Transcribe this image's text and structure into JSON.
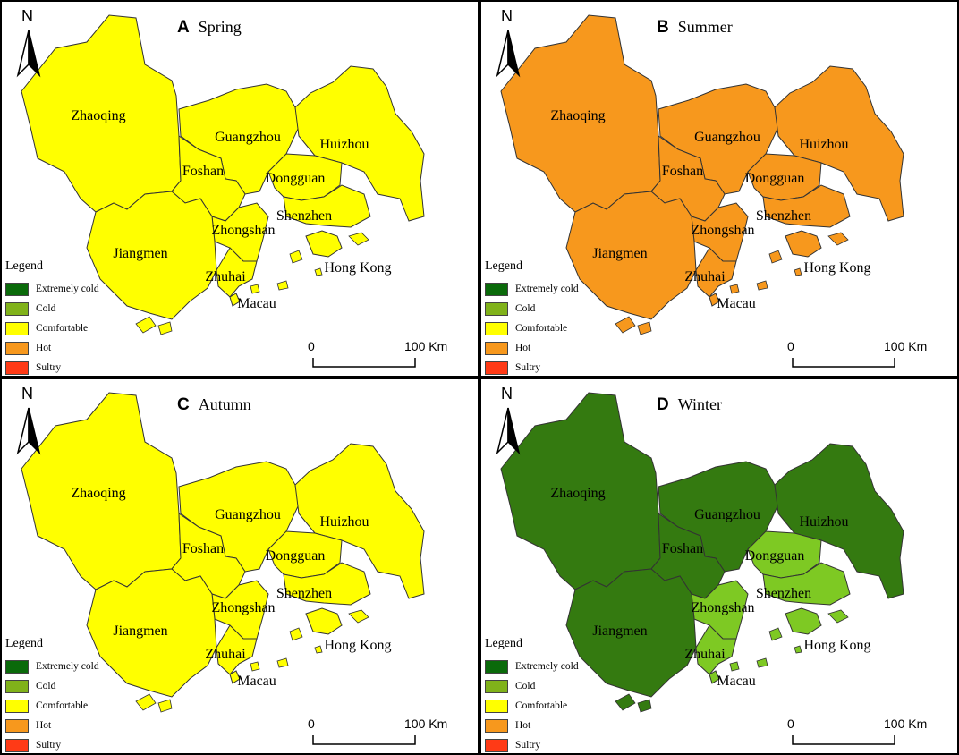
{
  "colors": {
    "extremely_cold": "#0a6a0a",
    "cold": "#80b21a",
    "comfortable": "#ffff00",
    "hot": "#f7981d",
    "sultry": "#ff3a16",
    "winter_dark": "#347a10",
    "winter_light": "#7ec923"
  },
  "legend": {
    "title": "Legend",
    "items": [
      {
        "label": "Extremely cold",
        "color": "#0a6a0a"
      },
      {
        "label": "Cold",
        "color": "#80b21a"
      },
      {
        "label": "Comfortable",
        "color": "#ffff00"
      },
      {
        "label": "Hot",
        "color": "#f7981d"
      },
      {
        "label": "Sultry",
        "color": "#ff3a16"
      }
    ]
  },
  "north_label": "N",
  "scale": {
    "start": "0",
    "end": "100 Km"
  },
  "cities": [
    "Zhaoqing",
    "Guangzhou",
    "Huizhou",
    "Foshan",
    "Dongguan",
    "Shenzhen",
    "Zhongshan",
    "Jiangmen",
    "Zhuhai",
    "Hong Kong",
    "Macau"
  ],
  "panels": [
    {
      "letter": "A",
      "season": "Spring",
      "class_by_city": {
        "Zhaoqing": "Comfortable",
        "Guangzhou": "Comfortable",
        "Huizhou": "Comfortable",
        "Foshan": "Comfortable",
        "Dongguan": "Comfortable",
        "Shenzhen": "Comfortable",
        "Zhongshan": "Comfortable",
        "Jiangmen": "Comfortable",
        "Zhuhai": "Comfortable",
        "Hong Kong": "Comfortable",
        "Macau": "Comfortable"
      }
    },
    {
      "letter": "B",
      "season": "Summer",
      "class_by_city": {
        "Zhaoqing": "Hot",
        "Guangzhou": "Hot",
        "Huizhou": "Hot",
        "Foshan": "Hot",
        "Dongguan": "Hot",
        "Shenzhen": "Hot",
        "Zhongshan": "Hot",
        "Jiangmen": "Hot",
        "Zhuhai": "Hot",
        "Hong Kong": "Hot",
        "Macau": "Hot"
      }
    },
    {
      "letter": "C",
      "season": "Autumn",
      "class_by_city": {
        "Zhaoqing": "Comfortable",
        "Guangzhou": "Comfortable",
        "Huizhou": "Comfortable",
        "Foshan": "Comfortable",
        "Dongguan": "Comfortable",
        "Shenzhen": "Comfortable",
        "Zhongshan": "Comfortable",
        "Jiangmen": "Comfortable",
        "Zhuhai": "Comfortable",
        "Hong Kong": "Comfortable",
        "Macau": "Comfortable"
      }
    },
    {
      "letter": "D",
      "season": "Winter",
      "class_by_city": {
        "Zhaoqing": "Extremely cold",
        "Guangzhou": "Extremely cold",
        "Huizhou": "Extremely cold",
        "Foshan": "Extremely cold",
        "Jiangmen": "Extremely cold",
        "Dongguan": "Cold",
        "Shenzhen": "Cold",
        "Zhongshan": "Cold",
        "Zhuhai": "Cold",
        "Hong Kong": "Cold",
        "Macau": "Cold"
      }
    }
  ]
}
